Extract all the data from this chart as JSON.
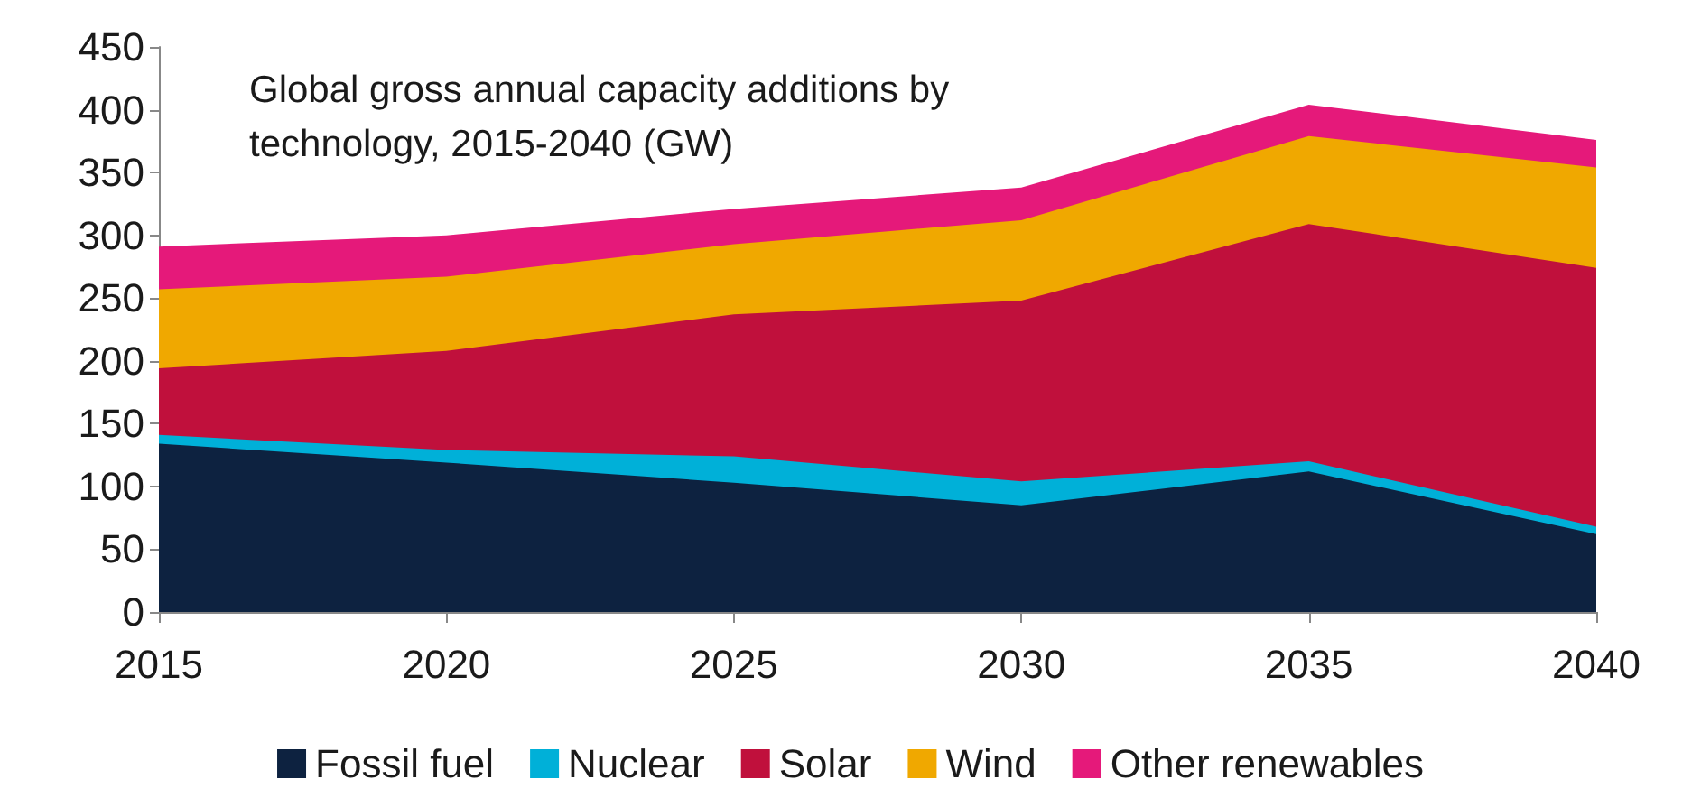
{
  "chart_data": {
    "type": "area",
    "title": "Global gross annual capacity additions by technology, 2015-2040 (GW)",
    "stacked": true,
    "x": [
      2015,
      2020,
      2025,
      2030,
      2035,
      2040
    ],
    "series": [
      {
        "name": "Fossil fuel",
        "color": "#0d2240",
        "values": [
          134,
          119,
          103,
          85,
          112,
          62
        ]
      },
      {
        "name": "Nuclear",
        "color": "#00b0d8",
        "values": [
          7,
          10,
          21,
          19,
          8,
          6
        ]
      },
      {
        "name": "Solar",
        "color": "#c0103c",
        "values": [
          53,
          79,
          113,
          144,
          189,
          206
        ]
      },
      {
        "name": "Wind",
        "color": "#f0a800",
        "values": [
          63,
          59,
          56,
          64,
          70,
          80
        ]
      },
      {
        "name": "Other renewables",
        "color": "#e5197a",
        "values": [
          34,
          33,
          28,
          26,
          25,
          22
        ]
      }
    ],
    "xlim": [
      2015,
      2040
    ],
    "xticks": [
      2015,
      2020,
      2025,
      2030,
      2035,
      2040
    ],
    "ylim": [
      0,
      450
    ],
    "yticks": [
      0,
      50,
      100,
      150,
      200,
      250,
      300,
      350,
      400,
      450
    ],
    "grid": false,
    "legend": "bottom",
    "marker": "none"
  }
}
